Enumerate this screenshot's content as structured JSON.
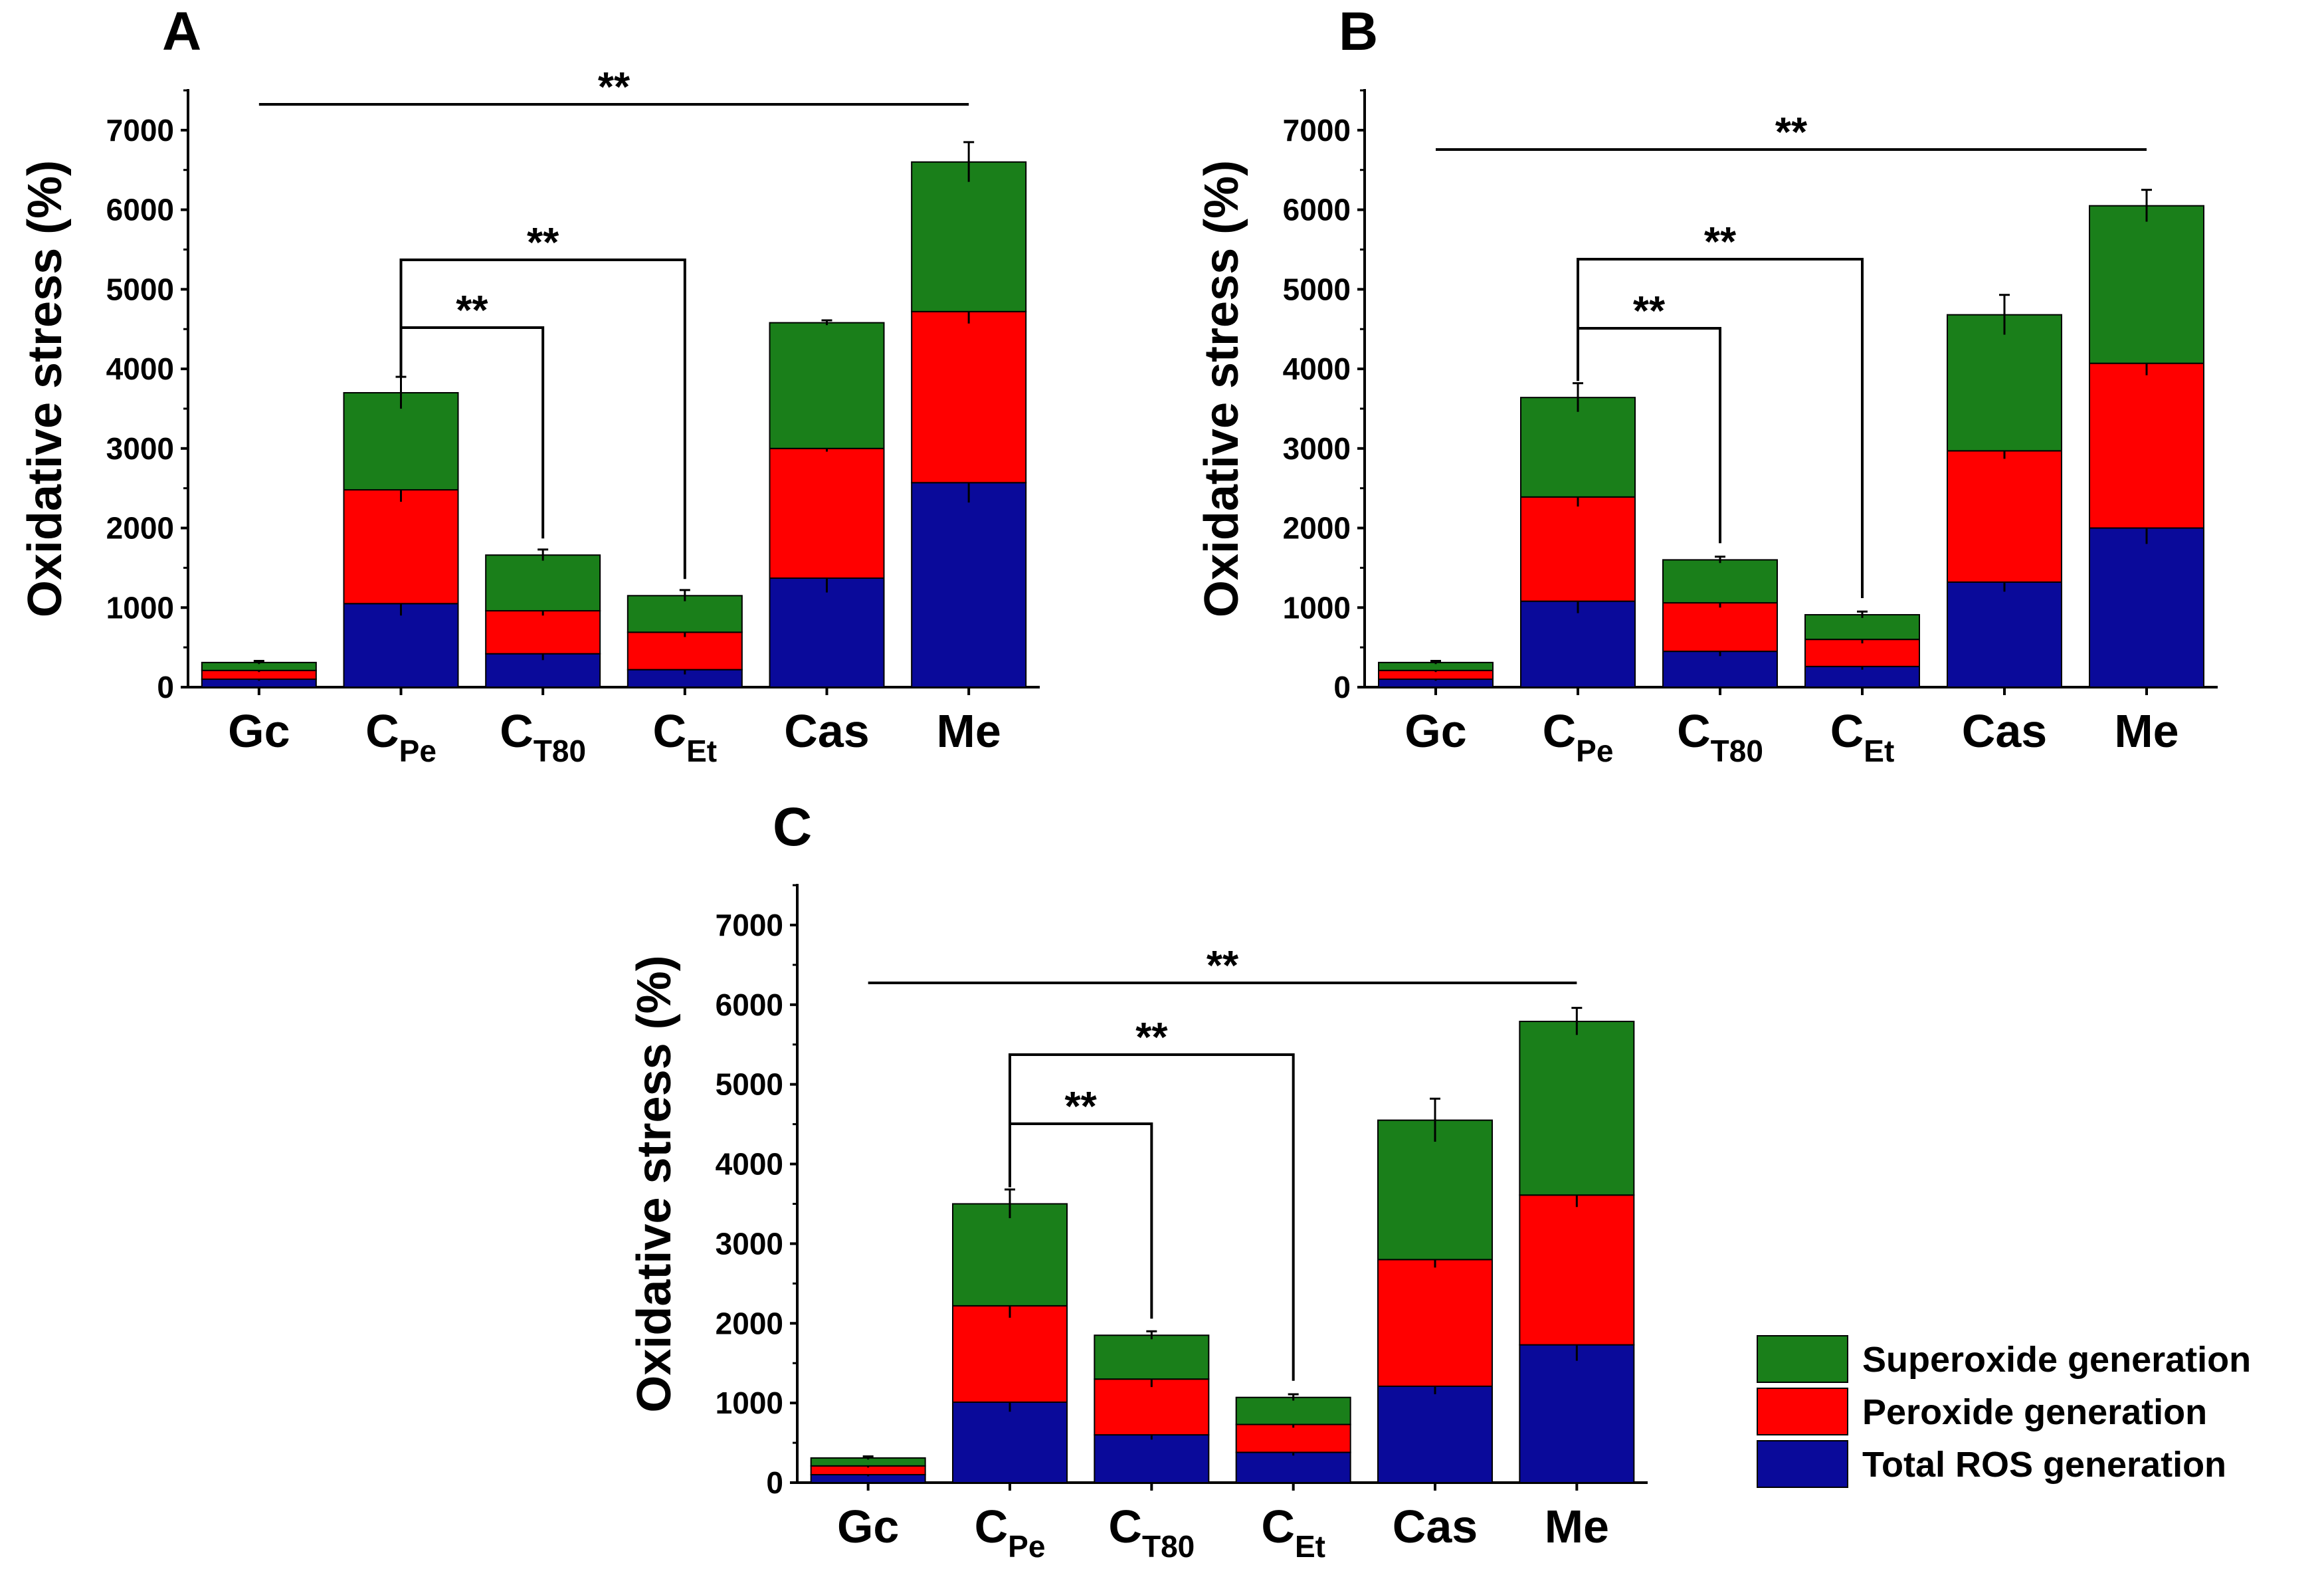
{
  "figure": {
    "stack_order": [
      "Total ROS generation",
      "Peroxide generation",
      "Superoxide generation"
    ],
    "series_colors": {
      "Total ROS generation": "#0a0a9a",
      "Peroxide generation": "#ff0000",
      "Superoxide generation": "#1a7f1a"
    },
    "legend": [
      "Superoxide generation",
      "Peroxide generation",
      "Total ROS generation"
    ]
  },
  "chart_data": [
    {
      "panel": "A",
      "type": "bar",
      "stacked": true,
      "ylabel": "Oxidative stress (%)",
      "ylim": [
        0,
        7500
      ],
      "yticks": [
        0,
        1000,
        2000,
        3000,
        4000,
        5000,
        6000,
        7000
      ],
      "categories": [
        {
          "base": "Gc",
          "sub": ""
        },
        {
          "base": "C",
          "sub": "Pe"
        },
        {
          "base": "C",
          "sub": "T80"
        },
        {
          "base": "C",
          "sub": "Et"
        },
        {
          "base": "Cas",
          "sub": ""
        },
        {
          "base": "Me",
          "sub": ""
        }
      ],
      "series": [
        {
          "name": "Total ROS generation",
          "values": [
            100,
            1050,
            420,
            220,
            1370,
            2570
          ],
          "errors": [
            20,
            150,
            80,
            60,
            180,
            250
          ]
        },
        {
          "name": "Peroxide generation",
          "values": [
            110,
            1430,
            540,
            470,
            1630,
            2150
          ],
          "errors": [
            20,
            150,
            60,
            60,
            40,
            150
          ]
        },
        {
          "name": "Superoxide generation",
          "values": [
            100,
            1220,
            700,
            460,
            1580,
            1880
          ],
          "errors": [
            20,
            200,
            70,
            70,
            30,
            250
          ]
        }
      ],
      "significance": [
        {
          "from": 0,
          "to": 5,
          "label": "**"
        },
        {
          "from": 1,
          "to": 3,
          "label": "**"
        },
        {
          "from": 1,
          "to": 2,
          "label": "**"
        }
      ]
    },
    {
      "panel": "B",
      "type": "bar",
      "stacked": true,
      "ylabel": "Oxidative stress (%)",
      "ylim": [
        0,
        7500
      ],
      "yticks": [
        0,
        1000,
        2000,
        3000,
        4000,
        5000,
        6000,
        7000
      ],
      "categories": [
        {
          "base": "Gc",
          "sub": ""
        },
        {
          "base": "C",
          "sub": "Pe"
        },
        {
          "base": "C",
          "sub": "T80"
        },
        {
          "base": "C",
          "sub": "Et"
        },
        {
          "base": "Cas",
          "sub": ""
        },
        {
          "base": "Me",
          "sub": ""
        }
      ],
      "series": [
        {
          "name": "Total ROS generation",
          "values": [
            100,
            1080,
            450,
            260,
            1320,
            2000
          ],
          "errors": [
            20,
            150,
            60,
            40,
            120,
            200
          ]
        },
        {
          "name": "Peroxide generation",
          "values": [
            110,
            1310,
            610,
            340,
            1650,
            2070
          ],
          "errors": [
            20,
            120,
            60,
            50,
            100,
            150
          ]
        },
        {
          "name": "Superoxide generation",
          "values": [
            100,
            1250,
            540,
            310,
            1710,
            1980
          ],
          "errors": [
            20,
            180,
            40,
            40,
            250,
            200
          ]
        }
      ],
      "significance": [
        {
          "from": 0,
          "to": 5,
          "label": "**"
        },
        {
          "from": 1,
          "to": 3,
          "label": "**"
        },
        {
          "from": 1,
          "to": 2,
          "label": "**"
        }
      ]
    },
    {
      "panel": "C",
      "type": "bar",
      "stacked": true,
      "ylabel": "Oxidative stress (%)",
      "ylim": [
        0,
        7500
      ],
      "yticks": [
        0,
        1000,
        2000,
        3000,
        4000,
        5000,
        6000,
        7000
      ],
      "categories": [
        {
          "base": "Gc",
          "sub": ""
        },
        {
          "base": "C",
          "sub": "Pe"
        },
        {
          "base": "C",
          "sub": "T80"
        },
        {
          "base": "C",
          "sub": "Et"
        },
        {
          "base": "Cas",
          "sub": ""
        },
        {
          "base": "Me",
          "sub": ""
        }
      ],
      "series": [
        {
          "name": "Total ROS generation",
          "values": [
            100,
            1010,
            600,
            380,
            1210,
            1730
          ],
          "errors": [
            20,
            120,
            60,
            40,
            100,
            200
          ]
        },
        {
          "name": "Peroxide generation",
          "values": [
            110,
            1210,
            700,
            350,
            1590,
            1880
          ],
          "errors": [
            20,
            150,
            100,
            40,
            100,
            150
          ]
        },
        {
          "name": "Superoxide generation",
          "values": [
            100,
            1280,
            550,
            340,
            1750,
            2180
          ],
          "errors": [
            20,
            180,
            50,
            40,
            270,
            170
          ]
        }
      ],
      "significance": [
        {
          "from": 0,
          "to": 5,
          "label": "**"
        },
        {
          "from": 1,
          "to": 3,
          "label": "**"
        },
        {
          "from": 1,
          "to": 2,
          "label": "**"
        }
      ]
    }
  ]
}
